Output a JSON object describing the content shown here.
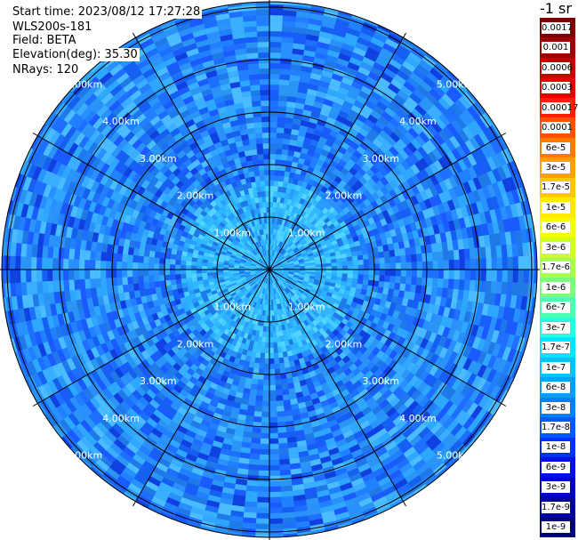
{
  "info": {
    "start_time": "Start time: 2023/08/12 17:27:28",
    "instrument": "WLS200s-181",
    "field": "Field: BETA",
    "elevation": "Elevation(deg): 35.30",
    "nrays": "NRays: 120"
  },
  "colorbar": {
    "unit_label": "-1 sr",
    "labels": [
      "0.0017",
      "0.001",
      "0.0006",
      "0.0003",
      "0.00017",
      "0.0001",
      "6e-5",
      "3e-5",
      "1.7e-5",
      "1e-5",
      "6e-6",
      "3e-6",
      "1.7e-6",
      "1e-6",
      "6e-7",
      "3e-7",
      "1.7e-7",
      "1e-7",
      "6e-8",
      "3e-8",
      "1.7e-8",
      "1e-8",
      "6e-9",
      "3e-9",
      "1.7e-9",
      "1e-9"
    ],
    "colors": [
      "#7d0000",
      "#a00000",
      "#c80000",
      "#e60000",
      "#ff1e00",
      "#ff5000",
      "#ff7a00",
      "#ffa000",
      "#ffc800",
      "#ffea00",
      "#f2ff00",
      "#cfff20",
      "#a8ff4a",
      "#7bff7b",
      "#4affb0",
      "#22ffe0",
      "#00e6ff",
      "#00c4ff",
      "#00a0ff",
      "#0080ff",
      "#0058ff",
      "#0030ff",
      "#0010e6",
      "#0000c8",
      "#0000a0",
      "#000078"
    ]
  },
  "chart_data": {
    "type": "heatmap",
    "projection": "polar (PPI scan)",
    "field": "BETA",
    "n_rays": 120,
    "elevation_deg": 35.3,
    "range_unit": "km",
    "range_rings": [
      1.0,
      2.0,
      3.0,
      4.0,
      5.0
    ],
    "range_ring_labels": [
      "1.00km",
      "2.00km",
      "3.00km",
      "4.00km",
      "5.00km"
    ],
    "max_range_km": 5.4,
    "azimuth_spokes_deg": [
      0,
      30,
      60,
      90,
      120,
      150,
      180,
      210,
      240,
      270,
      300,
      330
    ],
    "value_range": [
      1e-09,
      0.0017
    ],
    "color_scale": "log",
    "dominant_values": "approximately 3e-8 to 1.7e-7, highest near center (about 1.7e-7 to 3e-7)"
  }
}
